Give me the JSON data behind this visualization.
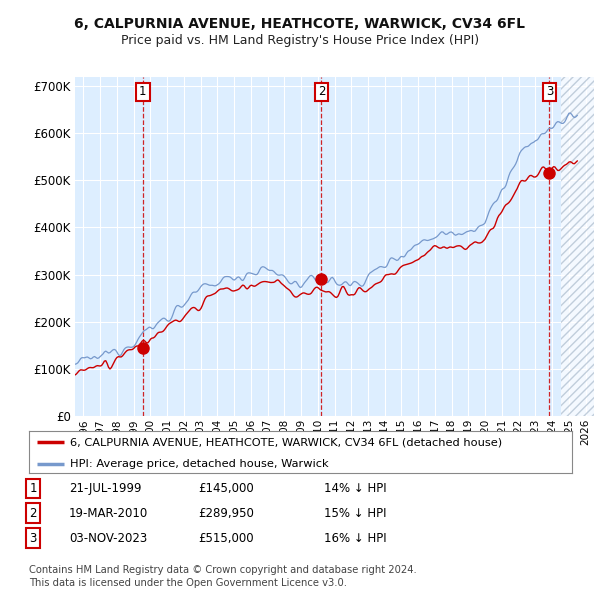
{
  "title": "6, CALPURNIA AVENUE, HEATHCOTE, WARWICK, CV34 6FL",
  "subtitle": "Price paid vs. HM Land Registry's House Price Index (HPI)",
  "title_fontsize": 10,
  "subtitle_fontsize": 9,
  "background_color": "#ffffff",
  "plot_bg_color": "#ddeeff",
  "grid_color": "#ffffff",
  "hpi_color": "#7799cc",
  "price_color": "#cc0000",
  "dashed_line_color": "#cc0000",
  "annotation_box_color": "#cc0000",
  "ylim": [
    0,
    720000
  ],
  "yticks": [
    0,
    100000,
    200000,
    300000,
    400000,
    500000,
    600000,
    700000
  ],
  "ytick_labels": [
    "£0",
    "£100K",
    "£200K",
    "£300K",
    "£400K",
    "£500K",
    "£600K",
    "£700K"
  ],
  "xlim_start": 1995.5,
  "xlim_end": 2026.5,
  "xticks": [
    1996,
    1997,
    1998,
    1999,
    2000,
    2001,
    2002,
    2003,
    2004,
    2005,
    2006,
    2007,
    2008,
    2009,
    2010,
    2011,
    2012,
    2013,
    2014,
    2015,
    2016,
    2017,
    2018,
    2019,
    2020,
    2021,
    2022,
    2023,
    2024,
    2025,
    2026
  ],
  "sales": [
    {
      "date": 1999.55,
      "price": 145000,
      "label": "1"
    },
    {
      "date": 2010.22,
      "price": 289950,
      "label": "2"
    },
    {
      "date": 2023.84,
      "price": 515000,
      "label": "3"
    }
  ],
  "sale_annotations": [
    {
      "num": "1",
      "date": "21-JUL-1999",
      "price": "£145,000",
      "pct": "14% ↓ HPI"
    },
    {
      "num": "2",
      "date": "19-MAR-2010",
      "price": "£289,950",
      "pct": "15% ↓ HPI"
    },
    {
      "num": "3",
      "date": "03-NOV-2023",
      "price": "£515,000",
      "pct": "16% ↓ HPI"
    }
  ],
  "legend_entries": [
    "6, CALPURNIA AVENUE, HEATHCOTE, WARWICK, CV34 6FL (detached house)",
    "HPI: Average price, detached house, Warwick"
  ],
  "footer": "Contains HM Land Registry data © Crown copyright and database right 2024.\nThis data is licensed under the Open Government Licence v3.0.",
  "hpi_base_years": [
    1995.5,
    1996,
    1997,
    1998,
    1999,
    2000,
    2001,
    2002,
    2003,
    2004,
    2005,
    2006,
    2007,
    2008,
    2009,
    2010,
    2011,
    2012,
    2013,
    2014,
    2015,
    2016,
    2017,
    2018,
    2019,
    2020,
    2021,
    2022,
    2023,
    2024,
    2025
  ],
  "hpi_base_values": [
    110000,
    115000,
    125000,
    140000,
    160000,
    185000,
    210000,
    240000,
    265000,
    285000,
    295000,
    305000,
    310000,
    295000,
    275000,
    290000,
    285000,
    278000,
    295000,
    320000,
    345000,
    365000,
    385000,
    390000,
    395000,
    410000,
    480000,
    545000,
    590000,
    610000,
    635000
  ],
  "pp_base_years": [
    1995.5,
    1996,
    1997,
    1998,
    1999,
    2000,
    2001,
    2002,
    2003,
    2004,
    2005,
    2006,
    2007,
    2008,
    2009,
    2010,
    2011,
    2012,
    2013,
    2014,
    2015,
    2016,
    2017,
    2018,
    2019,
    2020,
    2021,
    2022,
    2023,
    2024,
    2025
  ],
  "pp_base_values": [
    92000,
    97000,
    107000,
    120000,
    140000,
    162000,
    185000,
    210000,
    235000,
    255000,
    270000,
    278000,
    285000,
    275000,
    252000,
    268000,
    265000,
    260000,
    272000,
    292000,
    313000,
    335000,
    352000,
    358000,
    362000,
    372000,
    438000,
    490000,
    515000,
    525000,
    535000
  ]
}
